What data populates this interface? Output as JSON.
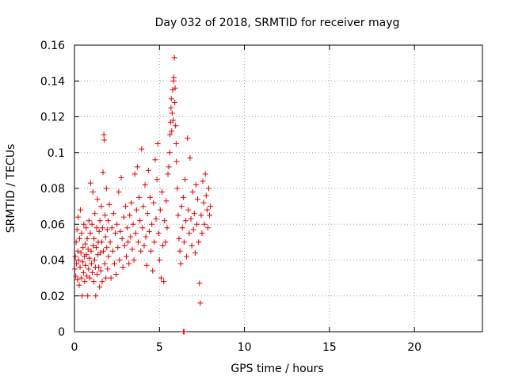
{
  "chart_data": {
    "type": "scatter",
    "title": "Day 032 of 2018, SRMTID for receiver mayg",
    "xlabel": "GPS time / hours",
    "ylabel": "SRMTID / TECUs",
    "xlim": [
      0,
      24
    ],
    "ylim": [
      0,
      0.16
    ],
    "x_ticks": [
      0,
      5,
      10,
      15,
      20
    ],
    "x_tick_labels": [
      "0",
      "5",
      "10",
      "15",
      "20"
    ],
    "y_ticks": [
      0,
      0.02,
      0.04,
      0.06,
      0.08,
      0.1,
      0.12,
      0.14,
      0.16
    ],
    "y_tick_labels": [
      "0",
      "0.02",
      "0.04",
      "0.06",
      "0.08",
      "0.1",
      "0.12",
      "0.14",
      "0.16"
    ],
    "grid": true,
    "marker": "+",
    "marker_color": "#dd0000",
    "points": [
      [
        0.02,
        0.035
      ],
      [
        0.05,
        0.042
      ],
      [
        0.08,
        0.031
      ],
      [
        0.1,
        0.05
      ],
      [
        0.12,
        0.038
      ],
      [
        0.15,
        0.057
      ],
      [
        0.18,
        0.029
      ],
      [
        0.2,
        0.045
      ],
      [
        0.22,
        0.064
      ],
      [
        0.25,
        0.04
      ],
      [
        0.28,
        0.026
      ],
      [
        0.3,
        0.052
      ],
      [
        0.33,
        0.036
      ],
      [
        0.35,
        0.068
      ],
      [
        0.38,
        0.044
      ],
      [
        0.4,
        0.03
      ],
      [
        0.42,
        0.055
      ],
      [
        0.45,
        0.02
      ],
      [
        0.48,
        0.039
      ],
      [
        0.5,
        0.047
      ],
      [
        0.53,
        0.033
      ],
      [
        0.55,
        0.06
      ],
      [
        0.58,
        0.042
      ],
      [
        0.6,
        0.028
      ],
      [
        0.63,
        0.049
      ],
      [
        0.65,
        0.037
      ],
      [
        0.68,
        0.058
      ],
      [
        0.7,
        0.043
      ],
      [
        0.73,
        0.031
      ],
      [
        0.75,
        0.052
      ],
      [
        0.78,
        0.02
      ],
      [
        0.8,
        0.046
      ],
      [
        0.83,
        0.035
      ],
      [
        0.85,
        0.062
      ],
      [
        0.88,
        0.041
      ],
      [
        0.9,
        0.03
      ],
      [
        0.93,
        0.055
      ],
      [
        0.95,
        0.083
      ],
      [
        0.98,
        0.045
      ],
      [
        1.0,
        0.038
      ],
      [
        1.03,
        0.06
      ],
      [
        1.05,
        0.033
      ],
      [
        1.08,
        0.078
      ],
      [
        1.1,
        0.048
      ],
      [
        1.13,
        0.028
      ],
      [
        1.15,
        0.052
      ],
      [
        1.18,
        0.04
      ],
      [
        1.2,
        0.066
      ],
      [
        1.23,
        0.036
      ],
      [
        1.25,
        0.02
      ],
      [
        1.28,
        0.047
      ],
      [
        1.3,
        0.058
      ],
      [
        1.33,
        0.032
      ],
      [
        1.35,
        0.074
      ],
      [
        1.38,
        0.043
      ],
      [
        1.4,
        0.05
      ],
      [
        1.43,
        0.036
      ],
      [
        1.45,
        0.056
      ],
      [
        1.48,
        0.025
      ],
      [
        1.5,
        0.062
      ],
      [
        1.53,
        0.044
      ],
      [
        1.55,
        0.034
      ],
      [
        1.58,
        0.07
      ],
      [
        1.6,
        0.05
      ],
      [
        1.63,
        0.028
      ],
      [
        1.65,
        0.058
      ],
      [
        1.68,
        0.089
      ],
      [
        1.7,
        0.045
      ],
      [
        1.73,
        0.11
      ],
      [
        1.75,
        0.107
      ],
      [
        1.78,
        0.038
      ],
      [
        1.8,
        0.065
      ],
      [
        1.83,
        0.053
      ],
      [
        1.85,
        0.03
      ],
      [
        1.88,
        0.08
      ],
      [
        1.9,
        0.047
      ],
      [
        1.93,
        0.057
      ],
      [
        1.95,
        0.035
      ],
      [
        1.98,
        0.062
      ],
      [
        2.0,
        0.042
      ],
      [
        2.05,
        0.071
      ],
      [
        2.1,
        0.05
      ],
      [
        2.15,
        0.03
      ],
      [
        2.2,
        0.058
      ],
      [
        2.25,
        0.045
      ],
      [
        2.3,
        0.066
      ],
      [
        2.35,
        0.038
      ],
      [
        2.4,
        0.055
      ],
      [
        2.45,
        0.032
      ],
      [
        2.5,
        0.06
      ],
      [
        2.55,
        0.047
      ],
      [
        2.6,
        0.078
      ],
      [
        2.65,
        0.04
      ],
      [
        2.7,
        0.056
      ],
      [
        2.75,
        0.086
      ],
      [
        2.8,
        0.052
      ],
      [
        2.85,
        0.036
      ],
      [
        2.9,
        0.064
      ],
      [
        2.95,
        0.048
      ],
      [
        3.0,
        0.07
      ],
      [
        3.05,
        0.042
      ],
      [
        3.1,
        0.058
      ],
      [
        3.15,
        0.05
      ],
      [
        3.2,
        0.038
      ],
      [
        3.25,
        0.065
      ],
      [
        3.3,
        0.053
      ],
      [
        3.35,
        0.072
      ],
      [
        3.4,
        0.046
      ],
      [
        3.45,
        0.06
      ],
      [
        3.5,
        0.04
      ],
      [
        3.55,
        0.088
      ],
      [
        3.6,
        0.055
      ],
      [
        3.65,
        0.068
      ],
      [
        3.7,
        0.092
      ],
      [
        3.75,
        0.05
      ],
      [
        3.8,
        0.075
      ],
      [
        3.85,
        0.062
      ],
      [
        3.9,
        0.045
      ],
      [
        3.95,
        0.102
      ],
      [
        4.0,
        0.058
      ],
      [
        4.05,
        0.07
      ],
      [
        4.1,
        0.048
      ],
      [
        4.15,
        0.082
      ],
      [
        4.2,
        0.053
      ],
      [
        4.25,
        0.037
      ],
      [
        4.3,
        0.066
      ],
      [
        4.35,
        0.09
      ],
      [
        4.4,
        0.056
      ],
      [
        4.45,
        0.075
      ],
      [
        4.5,
        0.045
      ],
      [
        4.55,
        0.06
      ],
      [
        4.6,
        0.034
      ],
      [
        4.65,
        0.072
      ],
      [
        4.7,
        0.05
      ],
      [
        4.75,
        0.096
      ],
      [
        4.8,
        0.063
      ],
      [
        4.85,
        0.085
      ],
      [
        4.9,
        0.105
      ],
      [
        4.95,
        0.055
      ],
      [
        5.0,
        0.04
      ],
      [
        5.05,
        0.068
      ],
      [
        5.1,
        0.03
      ],
      [
        5.15,
        0.078
      ],
      [
        5.2,
        0.048
      ],
      [
        5.25,
        0.028
      ],
      [
        5.3,
        0.062
      ],
      [
        5.35,
        0.05
      ],
      [
        5.4,
        0.073
      ],
      [
        5.45,
        0.058
      ],
      [
        5.5,
        0.088
      ],
      [
        5.55,
        0.092
      ],
      [
        5.6,
        0.1
      ],
      [
        5.62,
        0.11
      ],
      [
        5.65,
        0.117
      ],
      [
        5.68,
        0.125
      ],
      [
        5.7,
        0.13
      ],
      [
        5.72,
        0.112
      ],
      [
        5.75,
        0.122
      ],
      [
        5.78,
        0.135
      ],
      [
        5.8,
        0.118
      ],
      [
        5.83,
        0.14
      ],
      [
        5.85,
        0.142
      ],
      [
        5.88,
        0.153
      ],
      [
        5.9,
        0.128
      ],
      [
        5.92,
        0.136
      ],
      [
        5.95,
        0.115
      ],
      [
        5.98,
        0.105
      ],
      [
        6.0,
        0.095
      ],
      [
        6.05,
        0.08
      ],
      [
        6.1,
        0.065
      ],
      [
        6.15,
        0.052
      ],
      [
        6.2,
        0.045
      ],
      [
        6.25,
        0.038
      ],
      [
        6.3,
        0.07
      ],
      [
        6.35,
        0.058
      ],
      [
        6.4,
        0.075
      ],
      [
        6.45,
        0.05
      ],
      [
        6.5,
        0.085
      ],
      [
        6.55,
        0.062
      ],
      [
        6.6,
        0.042
      ],
      [
        6.65,
        0.108
      ],
      [
        6.7,
        0.068
      ],
      [
        6.75,
        0.055
      ],
      [
        6.8,
        0.097
      ],
      [
        6.85,
        0.063
      ],
      [
        6.9,
        0.048
      ],
      [
        6.95,
        0.078
      ],
      [
        7.0,
        0.057
      ],
      [
        7.05,
        0.066
      ],
      [
        7.1,
        0.044
      ],
      [
        7.15,
        0.082
      ],
      [
        7.2,
        0.06
      ],
      [
        7.25,
        0.074
      ],
      [
        7.3,
        0.05
      ],
      [
        7.35,
        0.027
      ],
      [
        7.4,
        0.016
      ],
      [
        7.45,
        0.065
      ],
      [
        7.5,
        0.055
      ],
      [
        7.55,
        0.084
      ],
      [
        7.6,
        0.072
      ],
      [
        7.65,
        0.06
      ],
      [
        7.7,
        0.088
      ],
      [
        7.75,
        0.076
      ],
      [
        7.8,
        0.068
      ],
      [
        7.85,
        0.058
      ],
      [
        7.9,
        0.08
      ],
      [
        7.95,
        0.065
      ],
      [
        8.0,
        0.07
      ],
      [
        6.4,
        0.0
      ],
      [
        6.45,
        0.0
      ]
    ]
  }
}
